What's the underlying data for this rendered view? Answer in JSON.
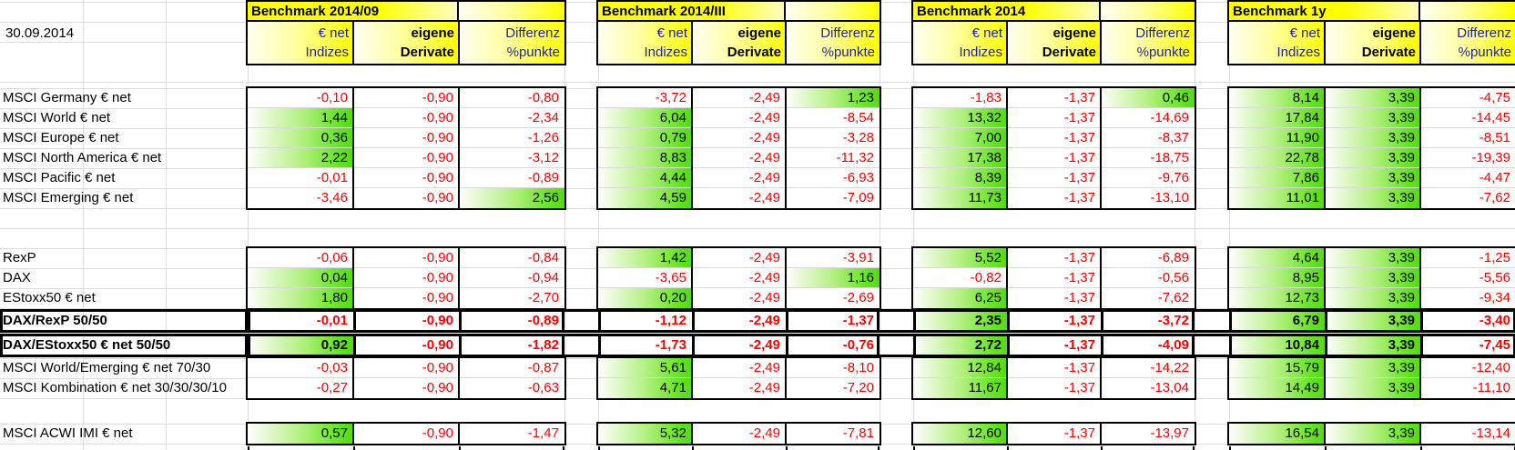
{
  "sheet": {
    "date_label": "30.09.2014",
    "column_headers": {
      "indices": {
        "line1": "€ net",
        "line2": "Indizes"
      },
      "derivatives": {
        "line1": "eigene",
        "line2": "Derivate"
      },
      "difference": {
        "line1": "Differenz",
        "line2": "%punkte"
      }
    },
    "groups": [
      {
        "title": "Benchmark 2014/09"
      },
      {
        "title": "Benchmark 2014/III"
      },
      {
        "title": "Benchmark 2014"
      },
      {
        "title": "Benchmark 1y"
      }
    ],
    "rows": [
      {
        "label": "MSCI Germany € net",
        "bold": false,
        "values": [
          [
            "-0,10",
            "-0,90",
            "-0,80"
          ],
          [
            "-3,72",
            "-2,49",
            "1,23"
          ],
          [
            "-1,83",
            "-1,37",
            "0,46"
          ],
          [
            "8,14",
            "3,39",
            "-4,75"
          ]
        ]
      },
      {
        "label": "MSCI World € net",
        "bold": false,
        "values": [
          [
            "1,44",
            "-0,90",
            "-2,34"
          ],
          [
            "6,04",
            "-2,49",
            "-8,54"
          ],
          [
            "13,32",
            "-1,37",
            "-14,69"
          ],
          [
            "17,84",
            "3,39",
            "-14,45"
          ]
        ]
      },
      {
        "label": "MSCI Europe € net",
        "bold": false,
        "values": [
          [
            "0,36",
            "-0,90",
            "-1,26"
          ],
          [
            "0,79",
            "-2,49",
            "-3,28"
          ],
          [
            "7,00",
            "-1,37",
            "-8,37"
          ],
          [
            "11,90",
            "3,39",
            "-8,51"
          ]
        ]
      },
      {
        "label": "MSCI North America € net",
        "bold": false,
        "values": [
          [
            "2,22",
            "-0,90",
            "-3,12"
          ],
          [
            "8,83",
            "-2,49",
            "-11,32"
          ],
          [
            "17,38",
            "-1,37",
            "-18,75"
          ],
          [
            "22,78",
            "3,39",
            "-19,39"
          ]
        ]
      },
      {
        "label": "MSCI Pacific € net",
        "bold": false,
        "values": [
          [
            "-0,01",
            "-0,90",
            "-0,89"
          ],
          [
            "4,44",
            "-2,49",
            "-6,93"
          ],
          [
            "8,39",
            "-1,37",
            "-9,76"
          ],
          [
            "7,86",
            "3,39",
            "-4,47"
          ]
        ]
      },
      {
        "label": "MSCI Emerging € net",
        "bold": false,
        "values": [
          [
            "-3,46",
            "-0,90",
            "2,56"
          ],
          [
            "4,59",
            "-2,49",
            "-7,09"
          ],
          [
            "11,73",
            "-1,37",
            "-13,10"
          ],
          [
            "11,01",
            "3,39",
            "-7,62"
          ]
        ]
      },
      {
        "label": "RexP",
        "bold": false,
        "values": [
          [
            "-0,06",
            "-0,90",
            "-0,84"
          ],
          [
            "1,42",
            "-2,49",
            "-3,91"
          ],
          [
            "5,52",
            "-1,37",
            "-6,89"
          ],
          [
            "4,64",
            "3,39",
            "-1,25"
          ]
        ]
      },
      {
        "label": "DAX",
        "bold": false,
        "values": [
          [
            "0,04",
            "-0,90",
            "-0,94"
          ],
          [
            "-3,65",
            "-2,49",
            "1,16"
          ],
          [
            "-0,82",
            "-1,37",
            "-0,56"
          ],
          [
            "8,95",
            "3,39",
            "-5,56"
          ]
        ]
      },
      {
        "label": "EStoxx50 € net",
        "bold": false,
        "values": [
          [
            "1,80",
            "-0,90",
            "-2,70"
          ],
          [
            "0,20",
            "-2,49",
            "-2,69"
          ],
          [
            "6,25",
            "-1,37",
            "-7,62"
          ],
          [
            "12,73",
            "3,39",
            "-9,34"
          ]
        ]
      },
      {
        "label": "DAX/RexP 50/50",
        "bold": true,
        "values": [
          [
            "-0,01",
            "-0,90",
            "-0,89"
          ],
          [
            "-1,12",
            "-2,49",
            "-1,37"
          ],
          [
            "2,35",
            "-1,37",
            "-3,72"
          ],
          [
            "6,79",
            "3,39",
            "-3,40"
          ]
        ]
      },
      {
        "label": "DAX/EStoxx50 € net 50/50",
        "bold": true,
        "values": [
          [
            "0,92",
            "-0,90",
            "-1,82"
          ],
          [
            "-1,73",
            "-2,49",
            "-0,76"
          ],
          [
            "2,72",
            "-1,37",
            "-4,09"
          ],
          [
            "10,84",
            "3,39",
            "-7,45"
          ]
        ]
      },
      {
        "label": "MSCI World/Emerging € net 70/30",
        "bold": false,
        "values": [
          [
            "-0,03",
            "-0,90",
            "-0,87"
          ],
          [
            "5,61",
            "-2,49",
            "-8,10"
          ],
          [
            "12,84",
            "-1,37",
            "-14,22"
          ],
          [
            "15,79",
            "3,39",
            "-12,40"
          ]
        ]
      },
      {
        "label": "MSCI Kombination € net 30/30/30/10",
        "bold": false,
        "values": [
          [
            "-0,27",
            "-0,90",
            "-0,63"
          ],
          [
            "4,71",
            "-2,49",
            "-7,20"
          ],
          [
            "11,67",
            "-1,37",
            "-13,04"
          ],
          [
            "14,49",
            "3,39",
            "-11,10"
          ]
        ]
      },
      {
        "label": "MSCI ACWI IMI € net",
        "bold": false,
        "values": [
          [
            "0,57",
            "-0,90",
            "-1,47"
          ],
          [
            "5,32",
            "-2,49",
            "-7,81"
          ],
          [
            "12,60",
            "-1,37",
            "-13,97"
          ],
          [
            "16,54",
            "3,39",
            "-13,14"
          ]
        ]
      }
    ],
    "colors": {
      "header_yellow": "#ffff00",
      "positive_green": "#55dd11",
      "negative_red": "#ff0000",
      "header_text_blue": "#1f1f9b",
      "grid_gray": "#dcdcdc",
      "border_black": "#000000"
    }
  }
}
